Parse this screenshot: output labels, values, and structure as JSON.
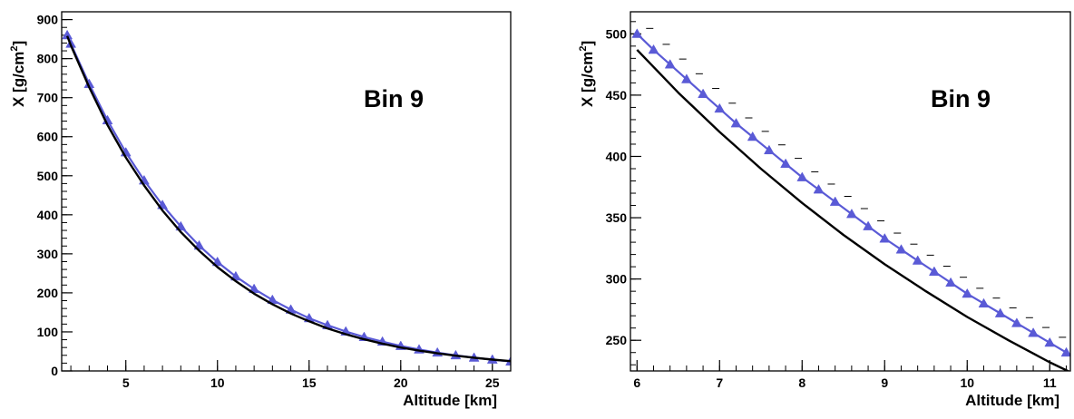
{
  "chart_data": [
    {
      "type": "line",
      "xlabel": "Altitude  [km]",
      "ylabel": "X  [g/cm",
      "ylabel_sup": "2",
      "ylabel_close": "]",
      "annotation": "Bin 9",
      "xlim": [
        1.5,
        26
      ],
      "ylim": [
        0,
        920
      ],
      "x_ticks": [
        5,
        10,
        15,
        20,
        25
      ],
      "y_ticks": [
        0,
        100,
        200,
        300,
        400,
        500,
        600,
        700,
        800,
        900
      ],
      "series": [
        {
          "color": "#000000",
          "x": [
            1.8,
            2,
            3,
            4,
            5,
            6,
            7,
            8,
            9,
            10,
            11,
            12,
            13,
            14,
            15,
            16,
            17,
            18,
            19,
            20,
            21,
            22,
            23,
            24,
            25,
            26
          ],
          "y": [
            858,
            834,
            727,
            630,
            547,
            475,
            411,
            356,
            308,
            266,
            230,
            198,
            171,
            147,
            127,
            109,
            94,
            81,
            70,
            60,
            52,
            45,
            39,
            34,
            29,
            25
          ]
        },
        {
          "color": "#5a5ad6",
          "marker": "triangle",
          "x": [
            1.8,
            2,
            3,
            4,
            5,
            6,
            7,
            8,
            9,
            10,
            11,
            12,
            13,
            14,
            15,
            16,
            17,
            18,
            19,
            20,
            21,
            22,
            23,
            24,
            25,
            26
          ],
          "y": [
            860,
            838,
            735,
            642,
            560,
            488,
            425,
            370,
            321,
            279,
            242,
            210,
            182,
            157,
            135,
            117,
            101,
            87,
            75,
            64,
            55,
            47,
            40,
            34,
            29,
            24
          ]
        }
      ]
    },
    {
      "type": "line",
      "xlabel": "Altitude  [km]",
      "ylabel": "X  [g/cm",
      "ylabel_sup": "2",
      "ylabel_close": "]",
      "annotation": "Bin 9",
      "xlim": [
        5.92,
        11.25
      ],
      "ylim": [
        225,
        518
      ],
      "x_ticks": [
        6,
        7,
        8,
        9,
        10,
        11
      ],
      "y_ticks": [
        250,
        300,
        350,
        400,
        450,
        500
      ],
      "series": [
        {
          "color": "#000000",
          "x": [
            6.0,
            6.5,
            7.0,
            7.5,
            8.0,
            8.5,
            9.0,
            9.5,
            10.0,
            10.5,
            11.0,
            11.25
          ],
          "y": [
            487,
            452,
            420,
            390,
            362,
            336,
            312,
            290,
            269,
            250,
            232,
            224
          ]
        },
        {
          "color": "#5a5ad6",
          "marker": "triangle",
          "x": [
            6.0,
            6.2,
            6.4,
            6.6,
            6.8,
            7.0,
            7.2,
            7.4,
            7.6,
            7.8,
            8.0,
            8.2,
            8.4,
            8.6,
            8.8,
            9.0,
            9.2,
            9.4,
            9.6,
            9.8,
            10.0,
            10.2,
            10.4,
            10.6,
            10.8,
            11.0,
            11.2
          ],
          "y": [
            500,
            487,
            475,
            463,
            451,
            439,
            427,
            416,
            405,
            394,
            383,
            373,
            363,
            353,
            343,
            333,
            324,
            315,
            306,
            297,
            288,
            280,
            272,
            264,
            256,
            248,
            240
          ]
        }
      ]
    }
  ]
}
